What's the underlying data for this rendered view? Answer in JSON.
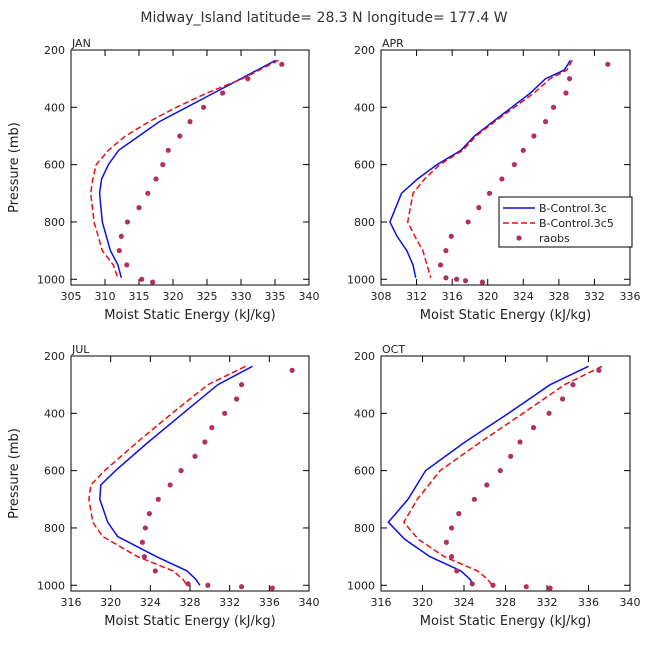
{
  "suptitle": "Midway_Island  latitude= 28.3 N longitude= 177.4 W",
  "colors": {
    "control3c": "#1010e0",
    "control3c5": "#e81010",
    "raobs": "#b03060",
    "axis": "#000000"
  },
  "legend": {
    "items": [
      "B-Control.3c",
      "B-Control.3c5",
      "raobs"
    ],
    "panel": "APR",
    "placement": "right"
  },
  "chart_data": [
    {
      "type": "line",
      "title": "JAN",
      "xlabel": "Moist Static Energy (kJ/kg)",
      "ylabel": "Pressure (mb)",
      "xlim": [
        305,
        340
      ],
      "ylim": [
        1020,
        200
      ],
      "xticks": [
        "305",
        "310",
        "315",
        "320",
        "325",
        "330",
        "335",
        "340"
      ],
      "yticks": [
        "200",
        "400",
        "600",
        "800",
        "1000"
      ],
      "series": [
        {
          "name": "B-Control.3c",
          "style": "solid",
          "x": [
            335.1,
            330,
            326,
            322,
            318,
            315,
            312,
            310.5,
            309.5,
            309.2,
            309.6,
            310.8,
            311.9,
            312.4
          ],
          "y": [
            236,
            300,
            350,
            400,
            450,
            500,
            550,
            600,
            650,
            700,
            800,
            900,
            950,
            995
          ]
        },
        {
          "name": "B-Control.3c5",
          "style": "dashed",
          "x": [
            335.5,
            330.2,
            325,
            320.5,
            316.5,
            313,
            310.5,
            308.7,
            308.2,
            307.9,
            308.4,
            309.6,
            311.2,
            311.9
          ],
          "y": [
            236,
            300,
            350,
            400,
            450,
            500,
            550,
            600,
            650,
            700,
            800,
            900,
            950,
            995
          ]
        },
        {
          "name": "raobs",
          "style": "points",
          "x": [
            336,
            331,
            327.3,
            324.5,
            322.5,
            321,
            319.3,
            318.5,
            317.5,
            316.3,
            315,
            313.3,
            312.4,
            312.1,
            313.2,
            315.4,
            317
          ],
          "y": [
            250,
            300,
            350,
            400,
            450,
            500,
            550,
            600,
            650,
            700,
            750,
            800,
            850,
            900,
            950,
            1000,
            1010
          ]
        }
      ]
    },
    {
      "type": "line",
      "title": "APR",
      "xlabel": "Moist Static Energy (kJ/kg)",
      "ylabel": "Pressure (mb)",
      "xlim": [
        308,
        336
      ],
      "ylim": [
        1020,
        200
      ],
      "xticks": [
        "308",
        "312",
        "316",
        "320",
        "324",
        "328",
        "332",
        "336"
      ],
      "yticks": [
        "200",
        "400",
        "600",
        "800",
        "1000"
      ],
      "series": [
        {
          "name": "B-Control.3c",
          "style": "solid",
          "x": [
            329.3,
            328.6,
            326.5,
            324.8,
            322.7,
            320.6,
            318.5,
            317,
            314.3,
            312.1,
            310.3,
            309,
            309.8,
            310.9,
            311.6,
            311.9
          ],
          "y": [
            236,
            270,
            300,
            350,
            400,
            450,
            500,
            550,
            600,
            650,
            700,
            800,
            850,
            900,
            950,
            995
          ]
        },
        {
          "name": "B-Control.3c5",
          "style": "dashed",
          "x": [
            329.5,
            328.9,
            327,
            325.2,
            323,
            320.8,
            318.7,
            317.2,
            314.6,
            312.9,
            311.6,
            311,
            311.8,
            312.7,
            313.6
          ],
          "y": [
            236,
            270,
            300,
            350,
            400,
            450,
            500,
            550,
            600,
            650,
            700,
            800,
            850,
            900,
            995
          ]
        },
        {
          "name": "raobs",
          "style": "points",
          "x": [
            333.5,
            329.2,
            328.8,
            327.4,
            326.5,
            325.2,
            324,
            323,
            321.6,
            320.2,
            319,
            317.8,
            315.9,
            315.3,
            314.7,
            315.3,
            316.5,
            317.5,
            319.4
          ],
          "y": [
            250,
            300,
            350,
            400,
            450,
            500,
            550,
            600,
            650,
            700,
            750,
            800,
            850,
            900,
            950,
            995,
            1000,
            1005,
            1010
          ]
        }
      ]
    },
    {
      "type": "line",
      "title": "JUL",
      "xlabel": "Moist Static Energy (kJ/kg)",
      "ylabel": "Pressure (mb)",
      "xlim": [
        316,
        340
      ],
      "ylim": [
        1020,
        200
      ],
      "xticks": [
        "316",
        "320",
        "324",
        "328",
        "332",
        "336",
        "340"
      ],
      "yticks": [
        "200",
        "400",
        "600",
        "800",
        "1000"
      ],
      "series": [
        {
          "name": "B-Control.3c",
          "style": "solid",
          "x": [
            334.3,
            330.8,
            327.3,
            323.8,
            320.5,
            319,
            318.9,
            319.7,
            320.7,
            324.6,
            327.7,
            328.6,
            329
          ],
          "y": [
            236,
            300,
            400,
            500,
            600,
            650,
            700,
            780,
            830,
            900,
            950,
            980,
            1000
          ]
        },
        {
          "name": "B-Control.3c5",
          "style": "dashed",
          "x": [
            333.6,
            329.8,
            326.2,
            322.7,
            319.4,
            318,
            317.8,
            318.2,
            319.2,
            322.7,
            326.3,
            327.3,
            327.7
          ],
          "y": [
            236,
            300,
            400,
            500,
            600,
            650,
            700,
            780,
            830,
            900,
            950,
            980,
            1000
          ]
        },
        {
          "name": "raobs",
          "style": "points",
          "x": [
            338.3,
            333.2,
            332.7,
            331.5,
            330.2,
            329.5,
            328.5,
            327.1,
            326,
            324.8,
            323.9,
            323.5,
            323.2,
            323.4,
            324.5,
            327.8,
            329.8,
            333.2,
            336.3
          ],
          "y": [
            250,
            300,
            350,
            400,
            450,
            500,
            550,
            600,
            650,
            700,
            750,
            800,
            850,
            900,
            950,
            995,
            1000,
            1005,
            1010
          ]
        }
      ]
    },
    {
      "type": "line",
      "title": "OCT",
      "xlabel": "Moist Static Energy (kJ/kg)",
      "ylabel": "Pressure (mb)",
      "xlim": [
        316,
        340
      ],
      "ylim": [
        1020,
        200
      ],
      "xticks": [
        "316",
        "320",
        "324",
        "328",
        "332",
        "336",
        "340"
      ],
      "yticks": [
        "200",
        "400",
        "600",
        "800",
        "1000"
      ],
      "series": [
        {
          "name": "B-Control.3c",
          "style": "solid",
          "x": [
            336,
            332.3,
            328.3,
            324.1,
            320.3,
            318.6,
            316.7,
            318.3,
            320.7,
            323.7,
            324.6,
            324.9
          ],
          "y": [
            236,
            300,
            400,
            500,
            600,
            700,
            780,
            840,
            900,
            950,
            980,
            1000
          ]
        },
        {
          "name": "B-Control.3c5",
          "style": "dashed",
          "x": [
            337.3,
            333.7,
            329.7,
            325.6,
            321.7,
            319.5,
            318.2,
            319.6,
            322.1,
            325.3,
            326.3,
            326.7
          ],
          "y": [
            236,
            300,
            400,
            500,
            600,
            700,
            780,
            840,
            900,
            950,
            980,
            1000
          ]
        },
        {
          "name": "raobs",
          "style": "points",
          "x": [
            337,
            334.5,
            333.5,
            332.2,
            330.7,
            329.4,
            328.5,
            327.5,
            326.2,
            325,
            323.5,
            322.8,
            322.3,
            322.8,
            323.3,
            324.8,
            326.8,
            330,
            332.3
          ],
          "y": [
            250,
            300,
            350,
            400,
            450,
            500,
            550,
            600,
            650,
            700,
            750,
            800,
            850,
            900,
            950,
            995,
            1000,
            1005,
            1010
          ]
        }
      ]
    }
  ]
}
